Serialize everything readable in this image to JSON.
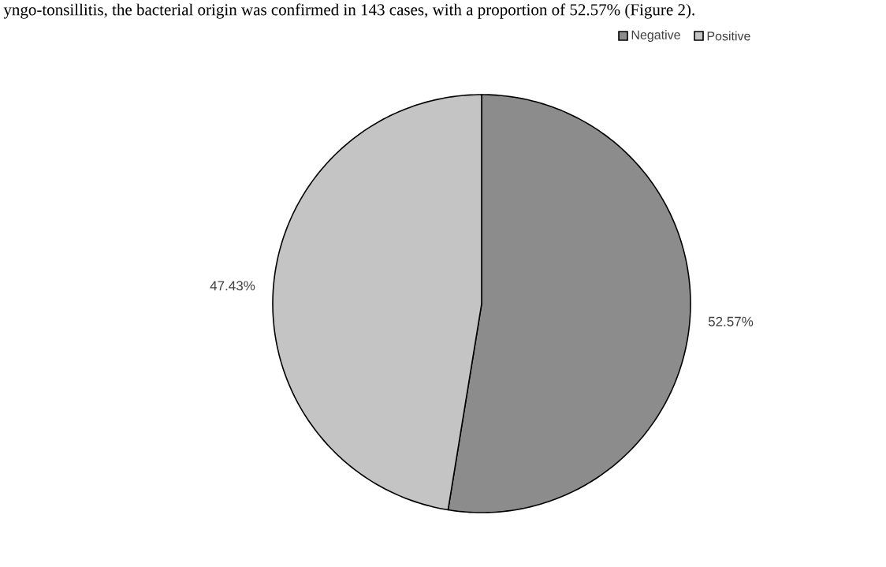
{
  "chart_data": {
    "type": "pie",
    "categories": [
      "Negative",
      "Positive"
    ],
    "values": [
      52.57,
      47.43
    ],
    "colors": [
      "#8c8c8c",
      "#c4c4c4"
    ],
    "value_labels": [
      "52.57%",
      "47.43%"
    ],
    "legend": "top right",
    "annotations": [
      "yngo-tonsillitis, the bacterial origin was confirmed in 143 cases, with a proportion of 52.57% (Figure 2)."
    ]
  }
}
